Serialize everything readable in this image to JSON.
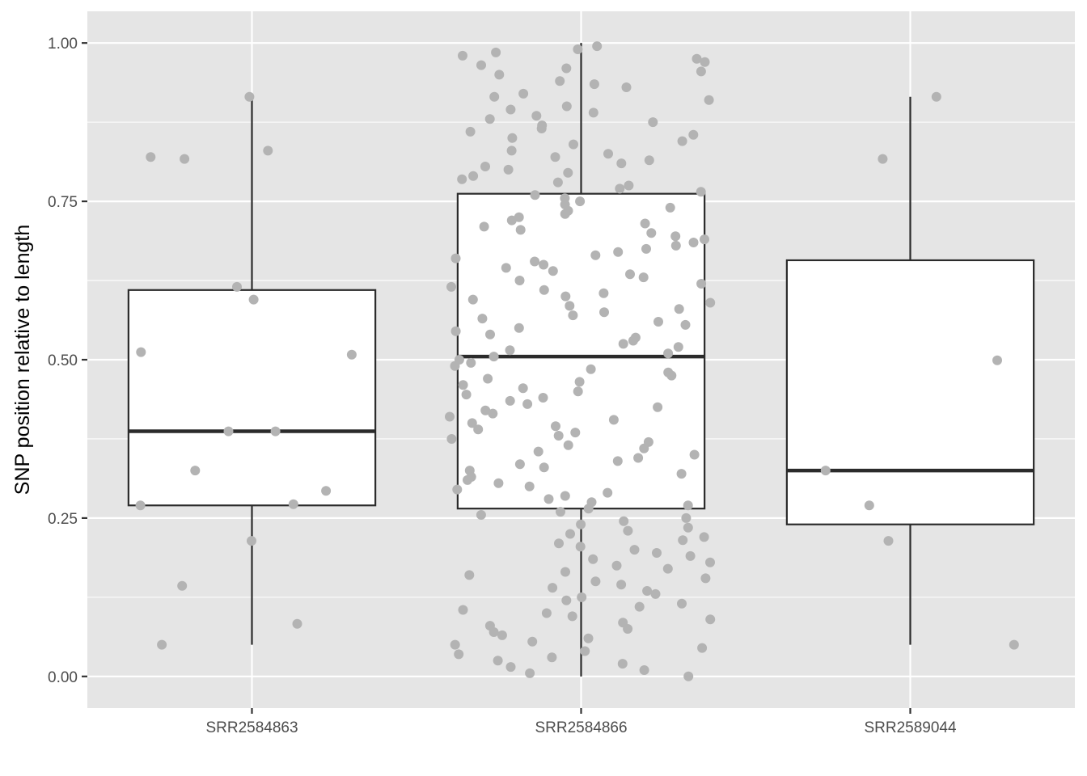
{
  "chart_data": {
    "type": "box",
    "xlabel": "",
    "ylabel": "SNP position relative to length",
    "ylim": [
      -0.05,
      1.05
    ],
    "y_ticks": [
      "0.00",
      "0.25",
      "0.50",
      "0.75",
      "1.00"
    ],
    "y_tick_values": [
      0,
      0.25,
      0.5,
      0.75,
      1
    ],
    "categories": [
      "SRR2584863",
      "SRR2584866",
      "SRR2589044"
    ],
    "grid": true,
    "colors": {
      "panel": "#e5e5e5",
      "grid": "#ffffff",
      "box_fill": "#ffffff",
      "box_line": "#2b2b2b",
      "points": "#b3b3b3"
    },
    "boxes": [
      {
        "category": "SRR2584863",
        "lower_whisker": 0.05,
        "q1": 0.27,
        "median": 0.387,
        "q3": 0.61,
        "upper_whisker": 0.915
      },
      {
        "category": "SRR2584866",
        "lower_whisker": 0.0,
        "q1": 0.265,
        "median": 0.505,
        "q3": 0.762,
        "upper_whisker": 1.0
      },
      {
        "category": "SRR2589044",
        "lower_whisker": 0.05,
        "q1": 0.24,
        "median": 0.325,
        "q3": 0.657,
        "upper_whisker": 0.915
      }
    ],
    "points": [
      {
        "category": "SRR2584863",
        "values": [
          0.915,
          0.83,
          0.82,
          0.817,
          0.615,
          0.595,
          0.512,
          0.508,
          0.387,
          0.387,
          0.325,
          0.293,
          0.272,
          0.27,
          0.214,
          0.143,
          0.083,
          0.05
        ]
      },
      {
        "category": "SRR2584866",
        "values": [
          0.995,
          0.99,
          0.985,
          0.98,
          0.975,
          0.97,
          0.965,
          0.96,
          0.955,
          0.95,
          0.94,
          0.935,
          0.93,
          0.92,
          0.915,
          0.91,
          0.9,
          0.895,
          0.89,
          0.885,
          0.88,
          0.875,
          0.87,
          0.865,
          0.86,
          0.855,
          0.85,
          0.845,
          0.84,
          0.83,
          0.825,
          0.82,
          0.815,
          0.81,
          0.805,
          0.8,
          0.795,
          0.79,
          0.785,
          0.78,
          0.775,
          0.77,
          0.765,
          0.76,
          0.755,
          0.75,
          0.745,
          0.74,
          0.735,
          0.73,
          0.725,
          0.72,
          0.715,
          0.71,
          0.705,
          0.7,
          0.695,
          0.69,
          0.685,
          0.68,
          0.675,
          0.67,
          0.665,
          0.66,
          0.655,
          0.65,
          0.645,
          0.64,
          0.635,
          0.63,
          0.625,
          0.62,
          0.615,
          0.61,
          0.605,
          0.6,
          0.595,
          0.59,
          0.585,
          0.58,
          0.575,
          0.57,
          0.565,
          0.56,
          0.555,
          0.55,
          0.545,
          0.54,
          0.535,
          0.53,
          0.525,
          0.52,
          0.515,
          0.51,
          0.505,
          0.5,
          0.495,
          0.49,
          0.485,
          0.48,
          0.475,
          0.47,
          0.465,
          0.46,
          0.455,
          0.45,
          0.445,
          0.44,
          0.435,
          0.43,
          0.425,
          0.42,
          0.415,
          0.41,
          0.405,
          0.4,
          0.395,
          0.39,
          0.385,
          0.38,
          0.375,
          0.37,
          0.365,
          0.36,
          0.355,
          0.35,
          0.345,
          0.34,
          0.335,
          0.33,
          0.325,
          0.32,
          0.315,
          0.31,
          0.305,
          0.3,
          0.295,
          0.29,
          0.285,
          0.28,
          0.275,
          0.27,
          0.265,
          0.26,
          0.255,
          0.25,
          0.245,
          0.24,
          0.235,
          0.23,
          0.225,
          0.22,
          0.215,
          0.21,
          0.205,
          0.2,
          0.195,
          0.19,
          0.185,
          0.18,
          0.175,
          0.17,
          0.165,
          0.16,
          0.155,
          0.15,
          0.145,
          0.14,
          0.135,
          0.13,
          0.125,
          0.12,
          0.115,
          0.11,
          0.105,
          0.1,
          0.095,
          0.09,
          0.085,
          0.08,
          0.075,
          0.07,
          0.065,
          0.06,
          0.055,
          0.05,
          0.045,
          0.04,
          0.035,
          0.03,
          0.025,
          0.02,
          0.015,
          0.01,
          0.005,
          0.0
        ]
      },
      {
        "category": "SRR2589044",
        "values": [
          0.915,
          0.817,
          0.499,
          0.325,
          0.27,
          0.214,
          0.05
        ]
      }
    ]
  }
}
